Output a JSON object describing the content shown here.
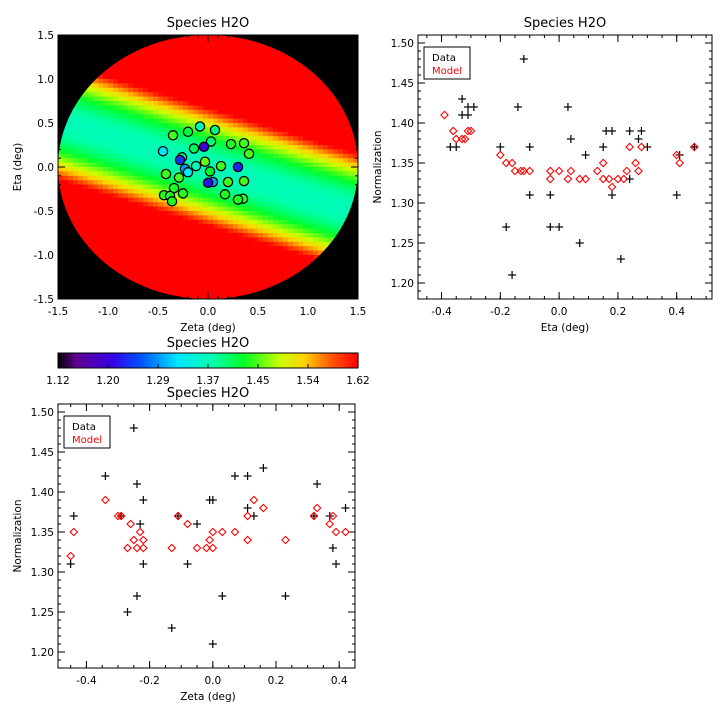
{
  "colors": {
    "data_marker": "#000000",
    "model_marker": "#ff0000",
    "map_background": "#000000"
  },
  "chart_data": [
    {
      "type": "heatmap",
      "title": "Species H2O",
      "xlabel": "Zeta (deg)",
      "ylabel": "Eta (deg)",
      "xlim": [
        -1.5,
        1.5
      ],
      "ylim": [
        -1.5,
        1.5
      ],
      "xticks": [
        "-1.5",
        "-1.0",
        "-0.5",
        "0.0",
        "0.5",
        "1.0",
        "1.5"
      ],
      "yticks": [
        "-1.5",
        "-1.0",
        "-0.5",
        "0.0",
        "0.5",
        "1.0",
        "1.5"
      ],
      "field_radius_deg": 1.5,
      "model": {
        "center": 1.37,
        "curvature": 0.56,
        "tilt": -0.35
      },
      "points": [
        {
          "x": -0.08,
          "y": 0.46,
          "v": 1.37
        },
        {
          "x": 0.07,
          "y": 0.42,
          "v": 1.4
        },
        {
          "x": -0.2,
          "y": 0.4,
          "v": 1.42
        },
        {
          "x": -0.35,
          "y": 0.36,
          "v": 1.45
        },
        {
          "x": 0.03,
          "y": 0.29,
          "v": 1.4
        },
        {
          "x": -0.04,
          "y": 0.23,
          "v": 1.2
        },
        {
          "x": -0.14,
          "y": 0.21,
          "v": 1.41
        },
        {
          "x": 0.23,
          "y": 0.26,
          "v": 1.44
        },
        {
          "x": 0.36,
          "y": 0.27,
          "v": 1.45
        },
        {
          "x": -0.45,
          "y": 0.18,
          "v": 1.32
        },
        {
          "x": 0.41,
          "y": 0.15,
          "v": 1.45
        },
        {
          "x": -0.26,
          "y": 0.11,
          "v": 1.4
        },
        {
          "x": -0.03,
          "y": 0.06,
          "v": 1.46
        },
        {
          "x": 0.13,
          "y": 0.01,
          "v": 1.45
        },
        {
          "x": -0.12,
          "y": 0.01,
          "v": 1.37
        },
        {
          "x": -0.28,
          "y": 0.08,
          "v": 1.24
        },
        {
          "x": 0.3,
          "y": -0.0,
          "v": 1.23
        },
        {
          "x": -0.23,
          "y": -0.02,
          "v": 1.29
        },
        {
          "x": -0.2,
          "y": -0.06,
          "v": 1.33
        },
        {
          "x": -0.42,
          "y": -0.08,
          "v": 1.45
        },
        {
          "x": 0.02,
          "y": -0.05,
          "v": 1.43
        },
        {
          "x": -0.29,
          "y": -0.12,
          "v": 1.45
        },
        {
          "x": 0.05,
          "y": -0.17,
          "v": 1.29
        },
        {
          "x": 0.2,
          "y": -0.17,
          "v": 1.45
        },
        {
          "x": 0.36,
          "y": -0.16,
          "v": 1.45
        },
        {
          "x": 0.0,
          "y": -0.18,
          "v": 1.22
        },
        {
          "x": -0.34,
          "y": -0.24,
          "v": 1.44
        },
        {
          "x": -0.25,
          "y": -0.3,
          "v": 1.44
        },
        {
          "x": -0.44,
          "y": -0.32,
          "v": 1.44
        },
        {
          "x": -0.38,
          "y": -0.33,
          "v": 1.44
        },
        {
          "x": -0.36,
          "y": -0.39,
          "v": 1.44
        },
        {
          "x": 0.17,
          "y": -0.31,
          "v": 1.44
        },
        {
          "x": 0.35,
          "y": -0.36,
          "v": 1.44
        },
        {
          "x": 0.3,
          "y": -0.37,
          "v": 1.44
        }
      ]
    },
    {
      "type": "scatter",
      "title": "Species H2O",
      "xlabel": "Eta (deg)",
      "ylabel": "Normalization",
      "xlim": [
        -0.48,
        0.52
      ],
      "ylim": [
        1.18,
        1.51
      ],
      "xticks": [
        "-0.4",
        "-0.2",
        "0.0",
        "0.2",
        "0.4"
      ],
      "yticks": [
        "1.20",
        "1.25",
        "1.30",
        "1.35",
        "1.40",
        "1.45",
        "1.50"
      ],
      "legend": [
        "Data",
        "Model"
      ],
      "series": [
        {
          "name": "Data",
          "marker": "plus",
          "points": [
            [
              -0.33,
              1.43
            ],
            [
              -0.31,
              1.42
            ],
            [
              -0.29,
              1.42
            ],
            [
              -0.33,
              1.41
            ],
            [
              -0.31,
              1.41
            ],
            [
              -0.37,
              1.37
            ],
            [
              -0.35,
              1.37
            ],
            [
              -0.2,
              1.37
            ],
            [
              -0.12,
              1.48
            ],
            [
              -0.14,
              1.42
            ],
            [
              -0.1,
              1.37
            ],
            [
              -0.1,
              1.31
            ],
            [
              -0.18,
              1.27
            ],
            [
              -0.16,
              1.21
            ],
            [
              -0.03,
              1.31
            ],
            [
              -0.03,
              1.27
            ],
            [
              0.0,
              1.27
            ],
            [
              0.03,
              1.42
            ],
            [
              0.04,
              1.38
            ],
            [
              0.09,
              1.36
            ],
            [
              0.07,
              1.25
            ],
            [
              0.15,
              1.37
            ],
            [
              0.16,
              1.39
            ],
            [
              0.18,
              1.39
            ],
            [
              0.18,
              1.31
            ],
            [
              0.21,
              1.23
            ],
            [
              0.24,
              1.39
            ],
            [
              0.27,
              1.38
            ],
            [
              0.28,
              1.39
            ],
            [
              0.3,
              1.37
            ],
            [
              0.24,
              1.33
            ],
            [
              0.4,
              1.31
            ],
            [
              0.41,
              1.36
            ],
            [
              0.46,
              1.37
            ]
          ]
        },
        {
          "name": "Model",
          "marker": "diamond",
          "points": [
            [
              -0.39,
              1.41
            ],
            [
              -0.36,
              1.39
            ],
            [
              -0.35,
              1.38
            ],
            [
              -0.33,
              1.38
            ],
            [
              -0.32,
              1.38
            ],
            [
              -0.31,
              1.39
            ],
            [
              -0.3,
              1.39
            ],
            [
              -0.2,
              1.36
            ],
            [
              -0.18,
              1.35
            ],
            [
              -0.16,
              1.35
            ],
            [
              -0.15,
              1.34
            ],
            [
              -0.13,
              1.34
            ],
            [
              -0.12,
              1.34
            ],
            [
              -0.1,
              1.34
            ],
            [
              -0.03,
              1.34
            ],
            [
              -0.03,
              1.33
            ],
            [
              0.0,
              1.34
            ],
            [
              0.03,
              1.33
            ],
            [
              0.04,
              1.34
            ],
            [
              0.07,
              1.33
            ],
            [
              0.09,
              1.33
            ],
            [
              0.13,
              1.34
            ],
            [
              0.15,
              1.33
            ],
            [
              0.15,
              1.35
            ],
            [
              0.17,
              1.33
            ],
            [
              0.18,
              1.32
            ],
            [
              0.2,
              1.33
            ],
            [
              0.22,
              1.33
            ],
            [
              0.23,
              1.34
            ],
            [
              0.24,
              1.37
            ],
            [
              0.26,
              1.35
            ],
            [
              0.27,
              1.34
            ],
            [
              0.28,
              1.37
            ],
            [
              0.4,
              1.36
            ],
            [
              0.41,
              1.35
            ],
            [
              0.46,
              1.37
            ]
          ]
        }
      ]
    },
    {
      "type": "colorbar",
      "title": "Species H2O",
      "min": 1.12,
      "max": 1.62,
      "tick_labels": [
        "1.12",
        "1.20",
        "1.29",
        "1.37",
        "1.45",
        "1.54",
        "1.62"
      ]
    },
    {
      "type": "scatter",
      "title": "Species H2O",
      "xlabel": "Zeta (deg)",
      "ylabel": "Normalization",
      "xlim": [
        -0.49,
        0.45
      ],
      "ylim": [
        1.18,
        1.51
      ],
      "xticks": [
        "-0.4",
        "-0.2",
        "0.0",
        "0.2",
        "0.4"
      ],
      "yticks": [
        "1.20",
        "1.25",
        "1.30",
        "1.35",
        "1.40",
        "1.45",
        "1.50"
      ],
      "legend": [
        "Data",
        "Model"
      ],
      "series": [
        {
          "name": "Data",
          "marker": "plus",
          "points": [
            [
              -0.45,
              1.31
            ],
            [
              -0.44,
              1.37
            ],
            [
              -0.34,
              1.42
            ],
            [
              -0.29,
              1.37
            ],
            [
              -0.27,
              1.25
            ],
            [
              -0.25,
              1.48
            ],
            [
              -0.24,
              1.27
            ],
            [
              -0.24,
              1.41
            ],
            [
              -0.23,
              1.36
            ],
            [
              -0.22,
              1.39
            ],
            [
              -0.22,
              1.31
            ],
            [
              -0.13,
              1.23
            ],
            [
              -0.11,
              1.37
            ],
            [
              -0.08,
              1.31
            ],
            [
              -0.05,
              1.36
            ],
            [
              -0.01,
              1.39
            ],
            [
              0.0,
              1.39
            ],
            [
              0.0,
              1.21
            ],
            [
              0.03,
              1.27
            ],
            [
              0.07,
              1.42
            ],
            [
              0.11,
              1.38
            ],
            [
              0.11,
              1.42
            ],
            [
              0.13,
              1.37
            ],
            [
              0.16,
              1.43
            ],
            [
              0.23,
              1.27
            ],
            [
              0.32,
              1.37
            ],
            [
              0.33,
              1.41
            ],
            [
              0.37,
              1.37
            ],
            [
              0.38,
              1.33
            ],
            [
              0.39,
              1.31
            ],
            [
              0.42,
              1.38
            ]
          ]
        },
        {
          "name": "Model",
          "marker": "diamond",
          "points": [
            [
              -0.45,
              1.32
            ],
            [
              -0.44,
              1.35
            ],
            [
              -0.34,
              1.39
            ],
            [
              -0.3,
              1.37
            ],
            [
              -0.29,
              1.37
            ],
            [
              -0.27,
              1.33
            ],
            [
              -0.26,
              1.36
            ],
            [
              -0.25,
              1.34
            ],
            [
              -0.24,
              1.33
            ],
            [
              -0.23,
              1.35
            ],
            [
              -0.22,
              1.33
            ],
            [
              -0.22,
              1.34
            ],
            [
              -0.13,
              1.33
            ],
            [
              -0.11,
              1.37
            ],
            [
              -0.08,
              1.36
            ],
            [
              -0.05,
              1.33
            ],
            [
              -0.02,
              1.33
            ],
            [
              -0.01,
              1.34
            ],
            [
              0.0,
              1.35
            ],
            [
              0.0,
              1.33
            ],
            [
              0.03,
              1.35
            ],
            [
              0.07,
              1.35
            ],
            [
              0.11,
              1.37
            ],
            [
              0.11,
              1.34
            ],
            [
              0.13,
              1.39
            ],
            [
              0.16,
              1.38
            ],
            [
              0.23,
              1.34
            ],
            [
              0.32,
              1.37
            ],
            [
              0.33,
              1.38
            ],
            [
              0.37,
              1.36
            ],
            [
              0.38,
              1.37
            ],
            [
              0.39,
              1.35
            ],
            [
              0.42,
              1.35
            ]
          ]
        }
      ]
    }
  ]
}
